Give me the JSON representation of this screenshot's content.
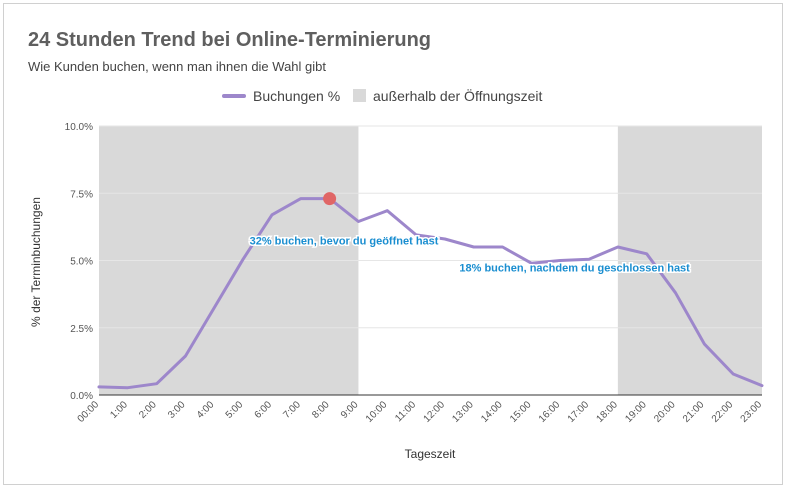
{
  "colors": {
    "line": "#9d87cb",
    "shade": "#d9d9d9",
    "marker": "#e06666",
    "annotation": "#1a8ed0"
  },
  "chart_data": {
    "type": "line",
    "title": "24 Stunden Trend bei Online-Terminierung",
    "subtitle": "Wie Kunden buchen, wenn man ihnen die Wahl gibt",
    "xlabel": "Tageszeit",
    "ylabel": "% der Terminbuchungen",
    "ylim": [
      0,
      10
    ],
    "yticks": [
      0,
      2.5,
      5,
      7.5,
      10
    ],
    "ytick_labels": [
      "0.0%",
      "2.5%",
      "5.0%",
      "7.5%",
      "10.0%"
    ],
    "categories": [
      "00:00",
      "1:00",
      "2:00",
      "3:00",
      "4:00",
      "5:00",
      "6:00",
      "7:00",
      "8:00",
      "9:00",
      "10:00",
      "11:00",
      "12:00",
      "13:00",
      "14:00",
      "15:00",
      "16:00",
      "17:00",
      "18:00",
      "19:00",
      "20:00",
      "21:00",
      "22:00",
      "23:00"
    ],
    "series": [
      {
        "name": "Buchungen %",
        "values": [
          0.3,
          0.27,
          0.42,
          1.45,
          3.25,
          5.05,
          6.7,
          7.3,
          7.3,
          6.45,
          6.85,
          5.95,
          5.8,
          5.5,
          5.5,
          4.9,
          5.0,
          5.05,
          5.5,
          5.25,
          3.8,
          1.9,
          0.78,
          0.35
        ]
      }
    ],
    "legend": [
      "Buchungen %",
      "außerhalb der Öffnungszeit"
    ],
    "legend_position": "top",
    "closed_ranges": [
      [
        0,
        9
      ],
      [
        18,
        23
      ]
    ],
    "highlight_point": {
      "category": "8:00",
      "value": 7.3
    },
    "annotations": [
      {
        "text": "32% buchen, bevor du geöffnet hast",
        "x": 8.5,
        "y": 5.6
      },
      {
        "text": "18% buchen, nachdem du geschlossen hast",
        "x": 16.5,
        "y": 4.6
      }
    ]
  }
}
